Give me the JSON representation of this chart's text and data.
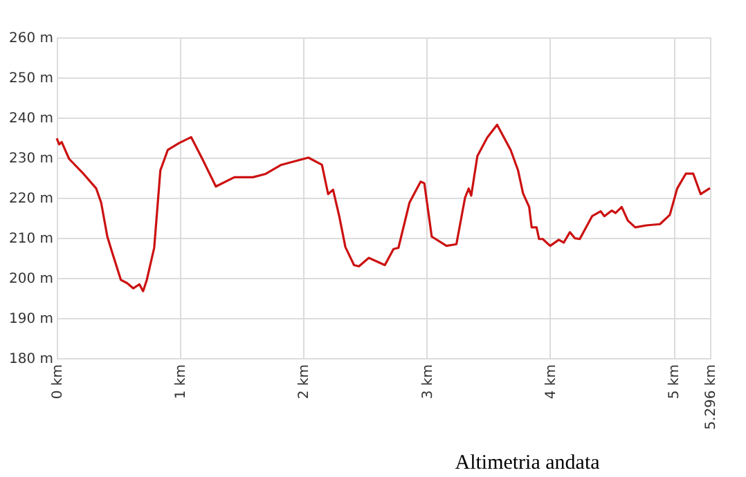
{
  "chart_data": {
    "type": "line",
    "x": [
      0,
      0.02,
      0.04,
      0.1,
      0.21,
      0.32,
      0.36,
      0.41,
      0.45,
      0.52,
      0.57,
      0.62,
      0.67,
      0.7,
      0.73,
      0.79,
      0.84,
      0.9,
      0.99,
      1.09,
      1.18,
      1.29,
      1.44,
      1.59,
      1.69,
      1.82,
      1.93,
      2.04,
      2.15,
      2.2,
      2.24,
      2.29,
      2.34,
      2.41,
      2.45,
      2.53,
      2.66,
      2.73,
      2.77,
      2.86,
      2.95,
      2.98,
      3.04,
      3.16,
      3.24,
      3.31,
      3.34,
      3.36,
      3.41,
      3.49,
      3.57,
      3.68,
      3.74,
      3.78,
      3.83,
      3.85,
      3.89,
      3.91,
      3.94,
      4.0,
      4.07,
      4.11,
      4.16,
      4.2,
      4.24,
      4.34,
      4.41,
      4.44,
      4.5,
      4.53,
      4.58,
      4.63,
      4.69,
      4.78,
      4.89,
      4.97,
      5.03,
      5.1,
      5.16,
      5.22,
      5.296
    ],
    "series": [
      {
        "color": "#cc1111",
        "values": [
          234.8,
          233.3,
          233.9,
          229.7,
          226.2,
          222.3,
          218.8,
          210.3,
          206.3,
          199.5,
          198.7,
          197.4,
          198.4,
          196.7,
          199.5,
          207.5,
          226.8,
          231.9,
          233.6,
          235.1,
          229.7,
          222.8,
          225.1,
          225.1,
          225.9,
          228.2,
          229.1,
          230,
          228.2,
          220.9,
          222,
          215.4,
          207.7,
          203.2,
          202.9,
          205,
          203.2,
          207.2,
          207.5,
          218.8,
          224,
          223.6,
          210.3,
          208,
          208.4,
          220,
          222.3,
          220.5,
          230.4,
          235,
          238.2,
          231.9,
          226.8,
          221.1,
          217.7,
          212.6,
          212.6,
          209.7,
          209.7,
          208,
          209.5,
          208.8,
          211.4,
          209.9,
          209.7,
          215.4,
          216.6,
          215.4,
          216.8,
          216.2,
          217.7,
          214.3,
          212.6,
          213.1,
          213.4,
          215.7,
          222.3,
          226,
          226,
          220.9,
          222.4
        ]
      }
    ],
    "xlim": [
      0,
      5.296
    ],
    "xticks": [
      {
        "value": 0,
        "label": "0 km"
      },
      {
        "value": 1,
        "label": "1 km"
      },
      {
        "value": 2,
        "label": "2 km"
      },
      {
        "value": 3,
        "label": "3 km"
      },
      {
        "value": 4,
        "label": "4 km"
      },
      {
        "value": 5,
        "label": "5 km"
      },
      {
        "value": 5.296,
        "label": "5.296 km"
      }
    ],
    "ylim": [
      180,
      260
    ],
    "yticks": [
      {
        "value": 180,
        "label": "180 m"
      },
      {
        "value": 190,
        "label": "190 m"
      },
      {
        "value": 200,
        "label": "200 m"
      },
      {
        "value": 210,
        "label": "210 m"
      },
      {
        "value": 220,
        "label": "220 m"
      },
      {
        "value": 230,
        "label": "230 m"
      },
      {
        "value": 240,
        "label": "240 m"
      },
      {
        "value": 250,
        "label": "250 m"
      },
      {
        "value": 260,
        "label": "260 m"
      }
    ],
    "grid": true,
    "line_style": "solid",
    "annotations": [
      "Altimetria andata"
    ]
  }
}
